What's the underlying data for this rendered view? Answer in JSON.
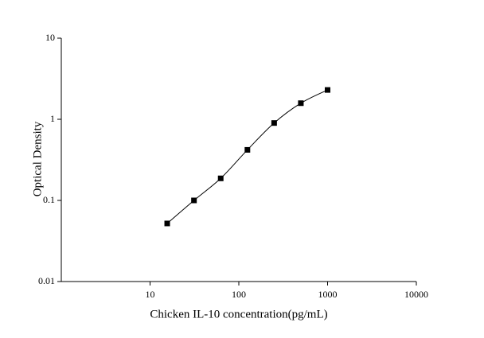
{
  "chart_data": {
    "type": "line",
    "x_label": "Chicken IL-10 concentration(pg/mL)",
    "y_label": "Optical Density",
    "x": [
      15.6,
      31.25,
      62.5,
      125,
      250,
      500,
      1000
    ],
    "series": [
      {
        "color": "#000000",
        "values": [
          0.052,
          0.1,
          0.187,
          0.42,
          0.9,
          1.58,
          2.3
        ]
      }
    ],
    "xlim": [
      1,
      10000
    ],
    "ylim": [
      0.01,
      10
    ],
    "xticks": [
      10,
      100,
      1000,
      10000
    ],
    "yticks": [
      0.01,
      0.1,
      1,
      10
    ],
    "xscale": "log",
    "yscale": "log",
    "markers": "square"
  }
}
